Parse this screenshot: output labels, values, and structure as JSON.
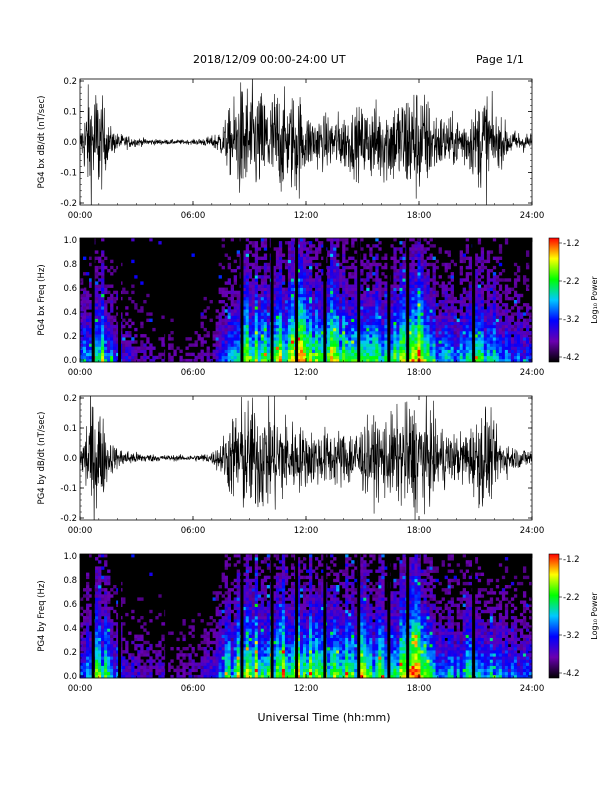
{
  "header": {
    "title": "2018/12/09  00:00-24:00 UT",
    "page": "Page 1/1"
  },
  "x_axis_title": "Universal Time (hh:mm)",
  "colorbar": {
    "label": "Log₁₀ Power",
    "ticks": [
      "-1.2",
      "-2.2",
      "-3.2",
      "-4.2"
    ],
    "colors": [
      "#ff0000",
      "#ffff00",
      "#00ff00",
      "#00c8ff",
      "#0000ff",
      "#6a00b0",
      "#000000"
    ]
  },
  "chart_data": [
    {
      "type": "line",
      "ylabel": "PG4 bx dB/dt (nT/sec)",
      "xlim": [
        0,
        24
      ],
      "ylim": [
        -0.2,
        0.2
      ],
      "xticks": [
        "00:00",
        "06:00",
        "12:00",
        "18:00",
        "24:00"
      ],
      "yticks": [
        "0.2",
        "0.1",
        "0.0",
        "-0.1",
        "-0.2"
      ],
      "envelope": {
        "hours": [
          0,
          0.5,
          1,
          1.5,
          2,
          3,
          4,
          5,
          6,
          7,
          7.5,
          8,
          8.5,
          9,
          9.5,
          10,
          10.5,
          11,
          11.5,
          12,
          13,
          14,
          15,
          16,
          17,
          17.5,
          18,
          19,
          20,
          21,
          21.5,
          22,
          23,
          24
        ],
        "amplitude": [
          0.03,
          0.2,
          0.2,
          0.06,
          0.03,
          0.015,
          0.01,
          0.008,
          0.008,
          0.02,
          0.05,
          0.12,
          0.2,
          0.2,
          0.18,
          0.16,
          0.2,
          0.14,
          0.2,
          0.1,
          0.09,
          0.1,
          0.12,
          0.14,
          0.16,
          0.2,
          0.2,
          0.1,
          0.08,
          0.12,
          0.2,
          0.1,
          0.04,
          0.03
        ]
      }
    },
    {
      "type": "heatmap",
      "ylabel": "PG4 bx Freq (Hz)",
      "xlim": [
        0,
        24
      ],
      "ylim": [
        0,
        1.0
      ],
      "xticks": [
        "00:00",
        "06:00",
        "12:00",
        "18:00",
        "24:00"
      ],
      "yticks": [
        "1.0",
        "0.8",
        "0.6",
        "0.4",
        "0.2",
        "0.0"
      ],
      "zlim": [
        -4.2,
        -1.2
      ],
      "activity": {
        "hours": [
          0,
          1,
          2,
          3,
          4,
          5,
          6,
          7,
          8,
          9,
          10,
          11,
          12,
          13,
          14,
          15,
          16,
          17,
          18,
          19,
          20,
          21,
          22,
          23,
          24
        ],
        "level": [
          0.35,
          0.75,
          0.3,
          0.2,
          0.15,
          0.1,
          0.1,
          0.2,
          0.5,
          0.75,
          0.7,
          0.8,
          0.8,
          0.75,
          0.75,
          0.7,
          0.65,
          0.7,
          0.85,
          0.55,
          0.45,
          0.6,
          0.55,
          0.4,
          0.35
        ]
      },
      "data_gaps_hours": [
        0.7,
        2.1,
        4.6,
        8.6,
        10.2,
        11.5,
        13.0,
        14.8,
        16.4,
        17.4,
        20.9
      ]
    },
    {
      "type": "line",
      "ylabel": "PG4 by dB/dt (nT/sec)",
      "xlim": [
        0,
        24
      ],
      "ylim": [
        -0.2,
        0.2
      ],
      "xticks": [
        "00:00",
        "06:00",
        "12:00",
        "18:00",
        "24:00"
      ],
      "yticks": [
        "0.2",
        "0.1",
        "0.0",
        "-0.1",
        "-0.2"
      ],
      "envelope": {
        "hours": [
          0,
          0.5,
          1,
          1.5,
          2,
          3,
          4,
          5,
          6,
          7,
          7.5,
          8,
          8.5,
          9,
          9.5,
          10,
          10.5,
          11,
          11.5,
          12,
          13,
          14,
          15,
          16,
          17,
          17.5,
          18,
          19,
          20,
          21,
          21.5,
          22,
          23,
          24
        ],
        "amplitude": [
          0.03,
          0.2,
          0.2,
          0.07,
          0.035,
          0.02,
          0.012,
          0.01,
          0.01,
          0.02,
          0.06,
          0.14,
          0.2,
          0.2,
          0.2,
          0.18,
          0.2,
          0.14,
          0.12,
          0.1,
          0.1,
          0.1,
          0.12,
          0.14,
          0.16,
          0.2,
          0.2,
          0.12,
          0.08,
          0.13,
          0.2,
          0.1,
          0.04,
          0.03
        ]
      }
    },
    {
      "type": "heatmap",
      "ylabel": "PG4 by Freq (Hz)",
      "xlim": [
        0,
        24
      ],
      "ylim": [
        0,
        1.0
      ],
      "xticks": [
        "00:00",
        "06:00",
        "12:00",
        "18:00",
        "24:00"
      ],
      "yticks": [
        "1.0",
        "0.8",
        "0.6",
        "0.4",
        "0.2",
        "0.0"
      ],
      "zlim": [
        -4.2,
        -1.2
      ],
      "activity": {
        "hours": [
          0,
          1,
          2,
          3,
          4,
          5,
          6,
          7,
          8,
          9,
          10,
          11,
          12,
          13,
          14,
          15,
          16,
          17,
          18,
          19,
          20,
          21,
          22,
          23,
          24
        ],
        "level": [
          0.4,
          0.8,
          0.35,
          0.25,
          0.2,
          0.2,
          0.2,
          0.3,
          0.6,
          0.8,
          0.75,
          0.8,
          0.75,
          0.7,
          0.75,
          0.7,
          0.65,
          0.7,
          0.85,
          0.5,
          0.45,
          0.6,
          0.5,
          0.4,
          0.35
        ]
      },
      "data_gaps_hours": [
        0.7,
        2.1,
        4.6,
        8.6,
        10.2,
        11.5,
        13.0,
        14.8,
        16.4,
        17.4,
        20.9
      ]
    }
  ]
}
